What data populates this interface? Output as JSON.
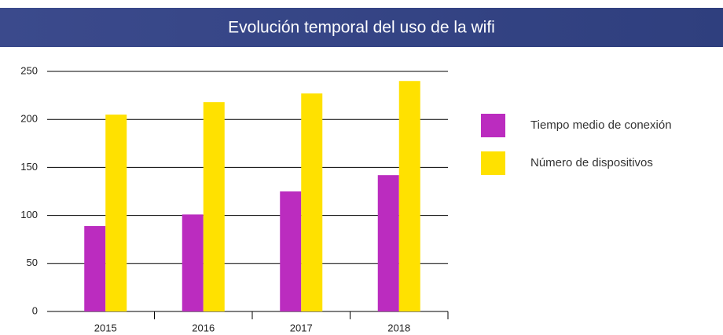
{
  "chart_data": {
    "type": "bar",
    "title": "Evolución temporal del uso de la wifi",
    "categories": [
      "2015",
      "2016",
      "2017",
      "2018"
    ],
    "series": [
      {
        "name": "Tiempo medio de conexión",
        "color": "#bb2cbf",
        "values": [
          89,
          101,
          125,
          142
        ]
      },
      {
        "name": "Número de dispositivos",
        "color": "#ffe100",
        "values": [
          205,
          218,
          227,
          240
        ]
      }
    ],
    "ylim": [
      0,
      250
    ],
    "yticks": [
      0,
      50,
      100,
      150,
      200,
      250
    ],
    "grid": true,
    "legend": "right"
  }
}
